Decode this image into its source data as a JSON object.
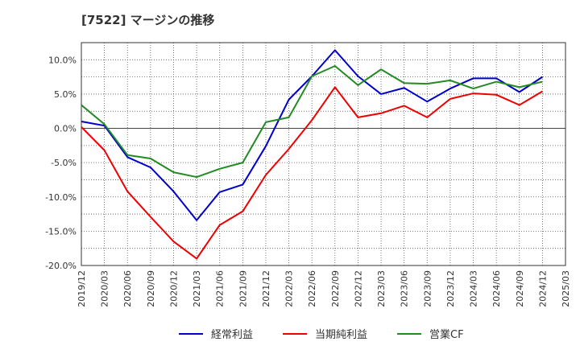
{
  "chart_data": {
    "type": "line",
    "title": "[7522]  マージンの推移",
    "xlabel": "",
    "ylabel": "",
    "categories": [
      "2019/12",
      "2020/03",
      "2020/06",
      "2020/09",
      "2020/12",
      "2021/03",
      "2021/06",
      "2021/09",
      "2021/12",
      "2022/03",
      "2022/06",
      "2022/09",
      "2022/12",
      "2023/03",
      "2023/06",
      "2023/09",
      "2023/12",
      "2024/03",
      "2024/06",
      "2024/09",
      "2024/12",
      "2025/03"
    ],
    "ylim": [
      -20,
      12.5
    ],
    "yticks": [
      10,
      5,
      0,
      -5,
      -10,
      -15,
      -20
    ],
    "ytick_labels": [
      "10.0%",
      "5.0%",
      "0.0%",
      "-5.0%",
      "-10.0%",
      "-15.0%",
      "-20.0%"
    ],
    "grid": true,
    "legend_position": "bottom",
    "series": [
      {
        "name": "経常利益",
        "color": "#0000cc",
        "values": [
          1.0,
          0.4,
          -4.2,
          -5.7,
          -9.2,
          -13.4,
          -9.3,
          -8.2,
          -2.6,
          4.2,
          7.6,
          11.4,
          7.6,
          5.0,
          5.9,
          3.9,
          5.8,
          7.3,
          7.3,
          5.3,
          7.5,
          null
        ]
      },
      {
        "name": "当期純利益",
        "color": "#ee0000",
        "values": [
          0.2,
          -3.2,
          -9.2,
          -12.9,
          -16.5,
          -19.0,
          -14.1,
          -12.1,
          -6.8,
          -3.0,
          1.2,
          6.0,
          1.6,
          2.2,
          3.3,
          1.6,
          4.3,
          5.1,
          4.9,
          3.4,
          5.4,
          null
        ]
      },
      {
        "name": "営業CF",
        "color": "#228b22",
        "values": [
          3.4,
          0.6,
          -3.9,
          -4.4,
          -6.4,
          -7.1,
          -5.9,
          -5.0,
          0.9,
          1.6,
          7.6,
          9.1,
          6.3,
          8.6,
          6.6,
          6.5,
          7.0,
          5.8,
          6.8,
          6.0,
          6.8,
          null
        ]
      }
    ]
  }
}
